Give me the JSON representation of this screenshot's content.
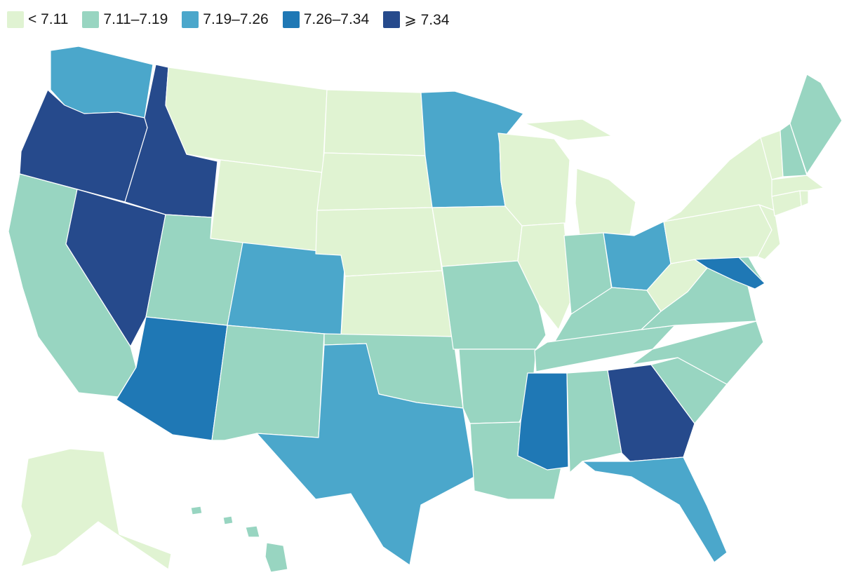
{
  "legend": [
    {
      "label": "< 7.11",
      "color": "#e0f3d2"
    },
    {
      "label": "7.11–7.19",
      "color": "#98d5c1"
    },
    {
      "label": "7.19–7.26",
      "color": "#4ba7cb"
    },
    {
      "label": "7.26–7.34",
      "color": "#1f78b5"
    },
    {
      "label": "⩾ 7.34",
      "color": "#264a8c"
    }
  ],
  "states": {
    "WA": 2,
    "OR": 4,
    "CA": 1,
    "NV": 4,
    "ID": 4,
    "MT": 0,
    "WY": 0,
    "UT": 1,
    "AZ": 3,
    "CO": 2,
    "NM": 1,
    "ND": 0,
    "SD": 0,
    "NE": 0,
    "KS": 0,
    "OK": 1,
    "TX": 2,
    "MN": 2,
    "IA": 0,
    "MO": 1,
    "AR": 1,
    "LA": 1,
    "WI": 0,
    "IL": 0,
    "MI": 0,
    "IN": 1,
    "OH": 2,
    "KY": 1,
    "TN": 1,
    "MS": 3,
    "AL": 1,
    "GA": 4,
    "FL": 2,
    "SC": 1,
    "NC": 1,
    "VA": 1,
    "WV": 0,
    "MD": 3,
    "DE": 1,
    "PA": 0,
    "NJ": 0,
    "NY": 0,
    "CT": 0,
    "RI": 0,
    "MA": 0,
    "VT": 0,
    "NH": 1,
    "ME": 1,
    "AK": 0,
    "HI": 1
  }
}
